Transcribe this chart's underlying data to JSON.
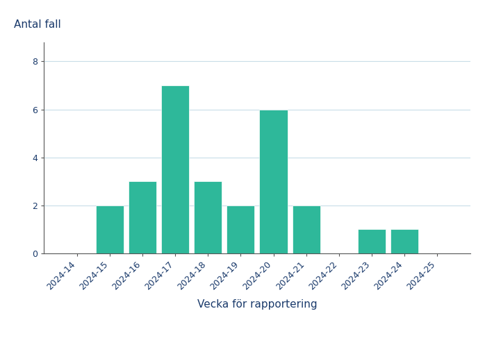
{
  "categories": [
    "2024-14",
    "2024-15",
    "2024-16",
    "2024-17",
    "2024-18",
    "2024-19",
    "2024-20",
    "2024-21",
    "2024-22",
    "2024-23",
    "2024-24",
    "2024-25"
  ],
  "values": [
    0,
    2,
    3,
    7,
    3,
    2,
    6,
    2,
    0,
    1,
    1,
    0
  ],
  "bar_color": "#2eb89a",
  "bar_edge_color": "#ffffff",
  "bar_linewidth": 0.5,
  "xlabel": "Vecka för rapportering",
  "ylabel": "Antal fall",
  "ylim": [
    0,
    8.8
  ],
  "yticks": [
    0,
    2,
    4,
    6,
    8
  ],
  "background_color": "#ffffff",
  "grid_color": "#c8dde8",
  "tick_label_color": "#1a3a6b",
  "axis_label_color": "#1a3a6b",
  "spine_color": "#555555",
  "xlabel_fontsize": 11,
  "ylabel_fontsize": 11,
  "tick_fontsize": 9
}
